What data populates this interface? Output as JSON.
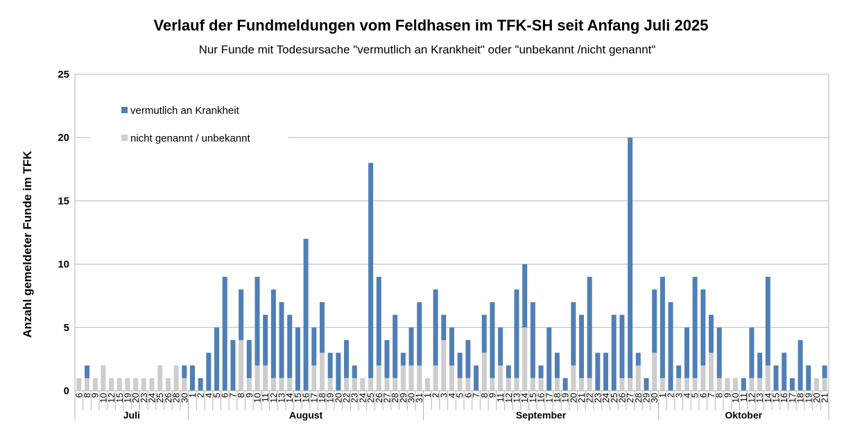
{
  "chart_data": {
    "type": "bar",
    "stacked": true,
    "title": "Verlauf der Fundmeldungen vom Feldhasen im TFK-SH seit Anfang Juli 2025",
    "subtitle": "Nur Funde mit Todesursache \"vermutlich an Krankheit\" oder \"unbekannt /nicht genannt\"",
    "xlabel": "",
    "ylabel": "Anzahl gemeldeter Funde im TFK",
    "ylim": [
      0,
      25
    ],
    "yticks": [
      0,
      5,
      10,
      15,
      20,
      25
    ],
    "grid": true,
    "legend_position": "top-left",
    "series": [
      {
        "name": "vermutlich an Krankheit",
        "key": "disease",
        "color": "#4f7fb5"
      },
      {
        "name": "nicht genannt / unbekannt",
        "key": "unknown",
        "color": "#cdcdcd"
      }
    ],
    "groups": [
      {
        "month": "Juli",
        "days": [
          "6",
          "8",
          "9",
          "10",
          "12",
          "15",
          "19",
          "20",
          "23",
          "24",
          "25",
          "26",
          "28",
          "30"
        ],
        "unknown": [
          1,
          1,
          1,
          2,
          1,
          1,
          1,
          1,
          1,
          1,
          2,
          1,
          2,
          1
        ],
        "disease": [
          0,
          1,
          0,
          0,
          0,
          0,
          0,
          0,
          0,
          0,
          0,
          0,
          0,
          1
        ]
      },
      {
        "month": "August",
        "days": [
          "1",
          "2",
          "4",
          "5",
          "6",
          "7",
          "8",
          "9",
          "10",
          "11",
          "12",
          "13",
          "14",
          "15",
          "16",
          "17",
          "18",
          "19",
          "20",
          "22",
          "23",
          "24",
          "25",
          "26",
          "27",
          "28",
          "29",
          "30",
          "31"
        ],
        "unknown": [
          0,
          0,
          0,
          0,
          0,
          0,
          4,
          1,
          2,
          2,
          1,
          1,
          1,
          0,
          0,
          2,
          3,
          1,
          0,
          1,
          1,
          1,
          1,
          2,
          1,
          1,
          2,
          2,
          2
        ],
        "disease": [
          2,
          1,
          3,
          5,
          9,
          4,
          4,
          3,
          7,
          4,
          7,
          6,
          5,
          5,
          12,
          3,
          4,
          2,
          3,
          3,
          1,
          0,
          17,
          7,
          3,
          5,
          1,
          3,
          5
        ]
      },
      {
        "month": "September",
        "days": [
          "1",
          "2",
          "3",
          "4",
          "5",
          "6",
          "7",
          "8",
          "9",
          "11",
          "12",
          "13",
          "14",
          "15",
          "16",
          "17",
          "18",
          "19",
          "20",
          "21",
          "22",
          "23",
          "24",
          "25",
          "26",
          "27",
          "28",
          "29",
          "30"
        ],
        "unknown": [
          1,
          2,
          4,
          2,
          1,
          1,
          0,
          3,
          1,
          2,
          1,
          1,
          5,
          1,
          1,
          0,
          1,
          0,
          2,
          1,
          1,
          0,
          0,
          0,
          1,
          1,
          2,
          0,
          3
        ],
        "disease": [
          0,
          6,
          2,
          3,
          2,
          3,
          2,
          3,
          6,
          3,
          1,
          7,
          5,
          6,
          1,
          5,
          2,
          1,
          5,
          5,
          8,
          3,
          3,
          6,
          5,
          19,
          1,
          1,
          5
        ]
      },
      {
        "month": "Oktober",
        "days": [
          "1",
          "2",
          "3",
          "4",
          "5",
          "6",
          "7",
          "8",
          "9",
          "10",
          "11",
          "12",
          "13",
          "14",
          "15",
          "16",
          "17",
          "18",
          "19",
          "20",
          "21"
        ],
        "unknown": [
          1,
          0,
          1,
          1,
          1,
          2,
          3,
          1,
          1,
          1,
          0,
          1,
          1,
          2,
          0,
          0,
          0,
          0,
          0,
          1,
          1
        ],
        "disease": [
          8,
          7,
          1,
          4,
          8,
          6,
          3,
          4,
          0,
          0,
          1,
          4,
          2,
          7,
          2,
          3,
          1,
          4,
          2,
          0,
          1
        ]
      }
    ]
  }
}
